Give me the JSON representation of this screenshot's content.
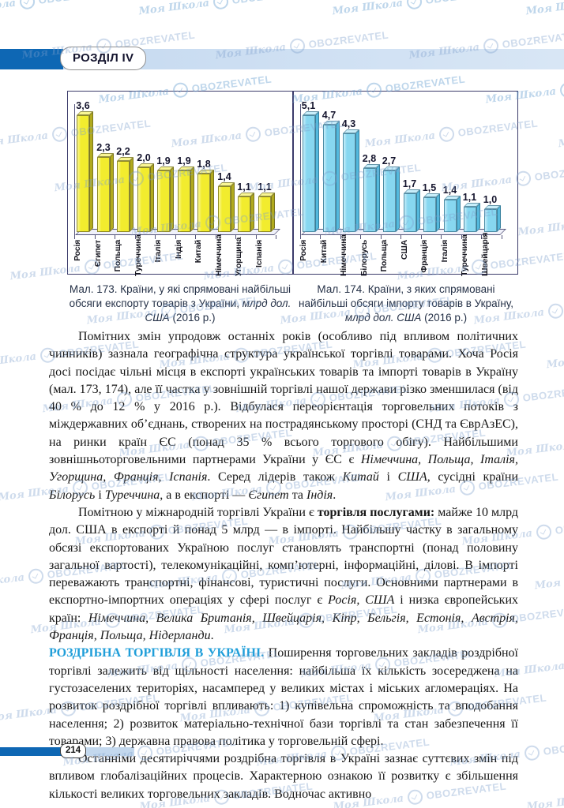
{
  "header": {
    "chapter_label": "РОЗДІЛ IV"
  },
  "watermark": {
    "script": "Моя Школа",
    "brand": "OBOZREVATEL"
  },
  "chart_data": [
    {
      "type": "bar",
      "title": "Мал. 173. Країни, у які спрямовані найбільші обсяги експорту товарів з України, млрд дол. США (2016 р.)",
      "categories": [
        "Росія",
        "Єгипет",
        "Польща",
        "Туреччина",
        "Італія",
        "Індія",
        "Китай",
        "Німеччина",
        "Угорщина",
        "Іспанія"
      ],
      "values": [
        3.6,
        2.3,
        2.2,
        2.0,
        1.9,
        1.9,
        1.8,
        1.4,
        1.1,
        1.1
      ],
      "value_labels": [
        "3,6",
        "2,3",
        "2,2",
        "2,0",
        "1,9",
        "1,9",
        "1,8",
        "1,4",
        "1,1",
        "1,1"
      ],
      "ylabel": "млрд дол. США",
      "ylim": [
        0,
        3.6
      ],
      "grid": false,
      "legend": "none",
      "colors": {
        "face": "#f2ec2e",
        "top": "#f9f694",
        "side": "#b1aa1e",
        "edge": "rgba(90,88,30,0.65)"
      }
    },
    {
      "type": "bar",
      "title": "Мал. 174. Країни, з яких спрямовані найбільші обсяги імпорту товарів в Україну, млрд дол. США (2016 р.)",
      "categories": [
        "Росія",
        "Китай",
        "Німеччина",
        "Білорусь",
        "Польща",
        "США",
        "Франція",
        "Італія",
        "Туреччина",
        "Швейцарія"
      ],
      "values": [
        5.1,
        4.7,
        4.3,
        2.8,
        2.7,
        1.7,
        1.5,
        1.4,
        1.1,
        1.0
      ],
      "value_labels": [
        "5,1",
        "4,7",
        "4,3",
        "2,8",
        "2,7",
        "1,7",
        "1,5",
        "1,4",
        "1,1",
        "1,0"
      ],
      "ylabel": "млрд дол. США",
      "ylim": [
        0,
        5.1
      ],
      "grid": false,
      "legend": "none",
      "colors": {
        "face": "#87d7f0",
        "top": "#c8eefa",
        "side": "#54b9dd",
        "edge": "rgba(35,90,115,0.6)"
      }
    }
  ],
  "figures": [
    {
      "caption_prefix": "Мал. 173. Країни, у які спрямовані найбільші обсяги експорту товарів з України,",
      "caption_italic": "млрд дол. США",
      "caption_suffix": "(2016 р.)"
    },
    {
      "caption_prefix": "Мал. 174. Країни, з яких спрямовані найбільші обсяги імпорту товарів в Україну,",
      "caption_italic": "млрд дол. США",
      "caption_suffix": "(2016 р.)"
    }
  ],
  "article": {
    "paragraphs": [
      {
        "indent": true,
        "runs": [
          {
            "s": "",
            "t": "Помітних змін упродовж останніх років (особливо під впливом політичних чинників) зазнала географічна структура української торгівлі товарами. Хоча Росія досі посідає чільні місця в експорті українських товарів та імпорті товарів в Україну (мал. 173, 174), але її частка у зовнішній торгівлі нашої держави різко зменшилася (від 40 % до 12 % у 2016 р.). Відбулася переорієнтація торговельних потоків з міждержавних об’єднань, створених на пострадянському просторі (СНД та ЄврАзЕС), на ринки країн ЄС (понад 35 % всього торгового обігу). Найбільшими зовнішньоторговельними партнерами України у ЄС є "
          },
          {
            "s": "i",
            "t": "Німеччина, Польща, Італія, Угорщина, Франція, Іспанія"
          },
          {
            "s": "",
            "t": ". Серед лідерів також "
          },
          {
            "s": "i",
            "t": "Китай"
          },
          {
            "s": "",
            "t": " і "
          },
          {
            "s": "i",
            "t": "США"
          },
          {
            "s": "",
            "t": ", сусідні країни "
          },
          {
            "s": "i",
            "t": "Білорусь"
          },
          {
            "s": "",
            "t": " і "
          },
          {
            "s": "i",
            "t": "Туреччина"
          },
          {
            "s": "",
            "t": ", а в експорті — "
          },
          {
            "s": "i",
            "t": "Єгипет"
          },
          {
            "s": "",
            "t": " та "
          },
          {
            "s": "i",
            "t": "Індія"
          },
          {
            "s": "",
            "t": "."
          }
        ]
      },
      {
        "indent": true,
        "runs": [
          {
            "s": "",
            "t": "Помітною у міжнародній торгівлі України є "
          },
          {
            "s": "b",
            "t": "торгівля послугами:"
          },
          {
            "s": "",
            "t": " майже 10 млрд дол. США в експорті й понад 5 млрд — в імпорті. Найбільшу частку в загальному обсязі експортованих Україною послуг становлять транспортні (понад половину загальної вартості), телекомунікаційні, комп’ютерні, інформаційні, ділові. В імпорті переважають транспортні, фінансові, туристичні послуги. Основними партнерами в експортно-імпортних операціях у сфері послуг є "
          },
          {
            "s": "i",
            "t": "Росія, США"
          },
          {
            "s": "",
            "t": " і низка європейських країн: "
          },
          {
            "s": "i",
            "t": "Німеччина, Велика Британія, Швейцарія, Кіпр, Бельгія, Естонія, Австрія, Франція, Польща, Нідерланди"
          },
          {
            "s": "",
            "t": "."
          }
        ]
      },
      {
        "indent": false,
        "runs": [
          {
            "s": "h",
            "t": "РОЗДРІБНА ТОРГІВЛЯ В УКРАЇНІ."
          },
          {
            "s": "",
            "t": " Поширення торговельних закладів роздрібної торгівлі залежить від щільності населення: найбільша їх кількість зосереджена на густозаселених територіях, насамперед у великих містах і міських агломераціях. На розвиток роздрібної торгівлі впливають: 1) купівельна спроможність та вподобання населення; 2) розвиток матеріально-технічної бази торгівлі та стан забезпечення її товарами; 3) державна правова політика у торговельній сфері."
          }
        ]
      },
      {
        "indent": true,
        "runs": [
          {
            "s": "",
            "t": "Останніми десятиріччями роздрібна торгівля в Україні зазнає суттєвих змін під впливом глобалізаційних процесів. Характерною ознакою її розвитку є збільшення кількості великих торговельних закладів. Водночас активно"
          }
        ]
      }
    ]
  },
  "footer": {
    "page_number": "214"
  },
  "colors": {
    "header_dark_blue": "#0e67b4",
    "header_light_blue": "#cfe0f3",
    "heading_cyan": "#1f9ed9",
    "figure_border": "#3c3c6b",
    "watermark_blue": "rgba(125,160,205,0.38)"
  }
}
